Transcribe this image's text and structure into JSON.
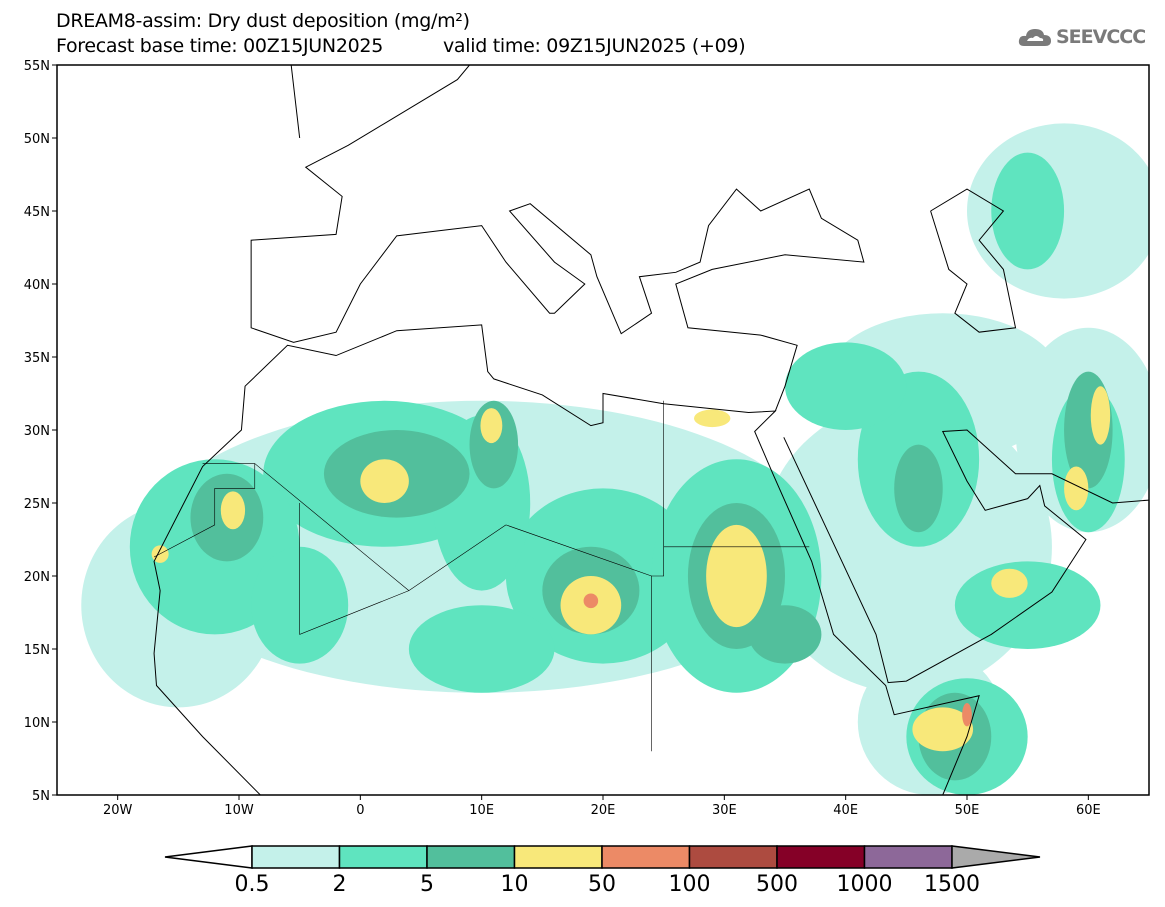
{
  "header": {
    "title": "DREAM8-assim: Dry dust deposition (mg/m²)",
    "base_time": "Forecast base time: 00Z15JUN2025",
    "valid_time": "valid time: 09Z15JUN2025 (+09)",
    "logo_text": "SEEVCCC"
  },
  "chart_data": {
    "type": "map",
    "variable": "Dry dust deposition",
    "units": "mg/m²",
    "lon_range": [
      -25,
      65
    ],
    "lat_range": [
      5,
      55
    ],
    "lat_labels": [
      "5N",
      "10N",
      "15N",
      "20N",
      "25N",
      "30N",
      "35N",
      "40N",
      "45N",
      "50N",
      "55N"
    ],
    "lon_labels": [
      "20W",
      "10W",
      "0",
      "10E",
      "20E",
      "30E",
      "40E",
      "50E",
      "60E"
    ],
    "colorbar": {
      "levels": [
        "0.5",
        "2",
        "5",
        "10",
        "50",
        "100",
        "500",
        "1000",
        "1500"
      ],
      "colors": [
        "#ffffff",
        "#c4f1ea",
        "#5fe4bf",
        "#52bf9c",
        "#f8e87a",
        "#ec8a66",
        "#ad4b40",
        "#850027",
        "#8d6899",
        "#aaaaaa"
      ]
    },
    "regions": [
      {
        "lon": 10,
        "lat": 22,
        "rlon": 28,
        "rlat": 10,
        "level": 1
      },
      {
        "lon": 45,
        "lat": 22,
        "rlon": 12,
        "rlat": 10,
        "level": 1
      },
      {
        "lon": 48,
        "lat": 33,
        "rlon": 10,
        "rlat": 5,
        "level": 1
      },
      {
        "lon": 58,
        "lat": 45,
        "rlon": 8,
        "rlat": 6,
        "level": 1
      },
      {
        "lon": -15,
        "lat": 18,
        "rlon": 8,
        "rlat": 7,
        "level": 1
      },
      {
        "lon": 47,
        "lat": 10,
        "rlon": 6,
        "rlat": 5,
        "level": 1
      },
      {
        "lon": 60,
        "lat": 30,
        "rlon": 6,
        "rlat": 7,
        "level": 1
      },
      {
        "lon": 2,
        "lat": 27,
        "rlon": 10,
        "rlat": 5,
        "level": 2
      },
      {
        "lon": -12,
        "lat": 22,
        "rlon": 7,
        "rlat": 6,
        "level": 2
      },
      {
        "lon": 20,
        "lat": 20,
        "rlon": 8,
        "rlat": 6,
        "level": 2
      },
      {
        "lon": 31,
        "lat": 20,
        "rlon": 7,
        "rlat": 8,
        "level": 2
      },
      {
        "lon": 10,
        "lat": 25,
        "rlon": 4,
        "rlat": 6,
        "level": 2
      },
      {
        "lon": 46,
        "lat": 28,
        "rlon": 5,
        "rlat": 6,
        "level": 2
      },
      {
        "lon": 40,
        "lat": 33,
        "rlon": 5,
        "rlat": 3,
        "level": 2
      },
      {
        "lon": 55,
        "lat": 45,
        "rlon": 3,
        "rlat": 4,
        "level": 2
      },
      {
        "lon": 60,
        "lat": 28,
        "rlon": 3,
        "rlat": 5,
        "level": 2
      },
      {
        "lon": 50,
        "lat": 9,
        "rlon": 5,
        "rlat": 4,
        "level": 2
      },
      {
        "lon": 55,
        "lat": 18,
        "rlon": 6,
        "rlat": 3,
        "level": 2
      },
      {
        "lon": -5,
        "lat": 18,
        "rlon": 4,
        "rlat": 4,
        "level": 2
      },
      {
        "lon": 10,
        "lat": 15,
        "rlon": 6,
        "rlat": 3,
        "level": 2
      },
      {
        "lon": 3,
        "lat": 27,
        "rlon": 6,
        "rlat": 3,
        "level": 3
      },
      {
        "lon": -11,
        "lat": 24,
        "rlon": 3,
        "rlat": 3,
        "level": 3
      },
      {
        "lon": 19,
        "lat": 19,
        "rlon": 4,
        "rlat": 3,
        "level": 3
      },
      {
        "lon": 31,
        "lat": 20,
        "rlon": 4,
        "rlat": 5,
        "level": 3
      },
      {
        "lon": 11,
        "lat": 29,
        "rlon": 2,
        "rlat": 3,
        "level": 3
      },
      {
        "lon": 46,
        "lat": 26,
        "rlon": 2,
        "rlat": 3,
        "level": 3
      },
      {
        "lon": 60,
        "lat": 30,
        "rlon": 2,
        "rlat": 4,
        "level": 3
      },
      {
        "lon": 49,
        "lat": 9,
        "rlon": 3,
        "rlat": 3,
        "level": 3
      },
      {
        "lon": 35,
        "lat": 16,
        "rlon": 3,
        "rlat": 2,
        "level": 3
      },
      {
        "lon": 2,
        "lat": 26.5,
        "rlon": 2,
        "rlat": 1.5,
        "level": 4
      },
      {
        "lon": -10.5,
        "lat": 24.5,
        "rlon": 1,
        "rlat": 1.3,
        "level": 4
      },
      {
        "lon": 19,
        "lat": 18,
        "rlon": 2.5,
        "rlat": 2,
        "level": 4
      },
      {
        "lon": 31,
        "lat": 20,
        "rlon": 2.5,
        "rlat": 3.5,
        "level": 4
      },
      {
        "lon": 10.8,
        "lat": 30.3,
        "rlon": 0.9,
        "rlat": 1.2,
        "level": 4
      },
      {
        "lon": 29,
        "lat": 30.8,
        "rlon": 1.5,
        "rlat": 0.6,
        "level": 4
      },
      {
        "lon": 59,
        "lat": 26,
        "rlon": 1,
        "rlat": 1.5,
        "level": 4
      },
      {
        "lon": 61,
        "lat": 31,
        "rlon": 0.8,
        "rlat": 2,
        "level": 4
      },
      {
        "lon": 48,
        "lat": 9.5,
        "rlon": 2.5,
        "rlat": 1.5,
        "level": 4
      },
      {
        "lon": 53.5,
        "lat": 19.5,
        "rlon": 1.5,
        "rlat": 1,
        "level": 4
      },
      {
        "lon": -16.5,
        "lat": 21.5,
        "rlon": 0.7,
        "rlat": 0.6,
        "level": 4
      },
      {
        "lon": 19,
        "lat": 18.3,
        "rlon": 0.6,
        "rlat": 0.5,
        "level": 5
      },
      {
        "lon": 50,
        "lat": 10.5,
        "rlon": 0.4,
        "rlat": 0.8,
        "level": 5
      }
    ]
  }
}
